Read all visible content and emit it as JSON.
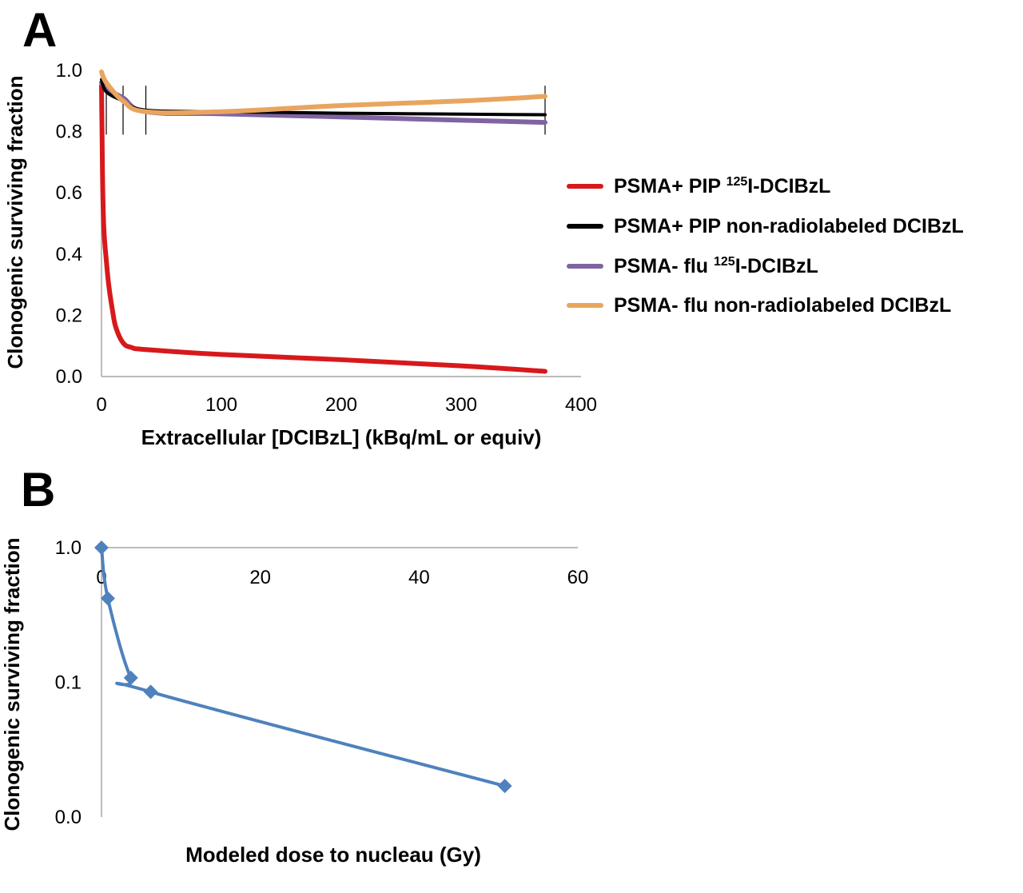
{
  "panels": {
    "a_label": "A",
    "b_label": "B"
  },
  "chart_data": [
    {
      "type": "line",
      "panel": "A",
      "xlabel": "Extracellular [DCIBzL] (kBq/mL or equiv)",
      "ylabel": "Clonogenic surviving fraction",
      "xlim": [
        0,
        400
      ],
      "ylim": [
        0,
        1.0
      ],
      "x_ticks": [
        "0",
        "100",
        "200",
        "300",
        "400"
      ],
      "y_ticks": [
        "0.0",
        "0.2",
        "0.4",
        "0.6",
        "0.8",
        "1.0"
      ],
      "legend_position": "right",
      "series": [
        {
          "name_main": "PSMA+ PIP ",
          "name_sup": "125",
          "name_tail": "I-DCIBzL",
          "color": "#d7191c",
          "x": [
            0,
            0.5,
            1,
            2,
            4,
            6,
            9,
            12,
            18,
            25,
            37,
            100,
            200,
            300,
            370
          ],
          "y": [
            0.95,
            0.78,
            0.62,
            0.48,
            0.38,
            0.3,
            0.22,
            0.16,
            0.11,
            0.095,
            0.088,
            0.072,
            0.055,
            0.035,
            0.017
          ]
        },
        {
          "name_main": "PSMA+ PIP non-radiolabeled DCIBzL",
          "name_sup": "",
          "name_tail": "",
          "color": "#000000",
          "x": [
            0,
            4,
            18,
            37,
            100,
            200,
            300,
            370
          ],
          "y": [
            0.97,
            0.93,
            0.9,
            0.87,
            0.865,
            0.86,
            0.857,
            0.855
          ]
        },
        {
          "name_main": "PSMA- flu ",
          "name_sup": "125",
          "name_tail": "I-DCIBzL",
          "color": "#8064a2",
          "x": [
            0,
            4,
            18,
            37,
            100,
            200,
            300,
            370
          ],
          "y": [
            0.96,
            0.94,
            0.91,
            0.865,
            0.858,
            0.848,
            0.837,
            0.83
          ]
        },
        {
          "name_main": "PSMA- flu non-radiolabeled DCIBzL",
          "name_sup": "",
          "name_tail": "",
          "color": "#e9a55f",
          "x": [
            0,
            4,
            18,
            37,
            100,
            200,
            300,
            370
          ],
          "y": [
            0.995,
            0.96,
            0.9,
            0.865,
            0.865,
            0.885,
            0.9,
            0.915
          ]
        }
      ],
      "error_bar_x": [
        4,
        18,
        37,
        370
      ]
    },
    {
      "type": "line",
      "panel": "B",
      "xlabel": "Modeled dose to nucleau (Gy)",
      "ylabel": "Clonogenic surviving fraction",
      "xlim": [
        0,
        60
      ],
      "y_scale": "log",
      "x_ticks": [
        "0",
        "20",
        "40",
        "60"
      ],
      "y_ticks": [
        "1.0",
        "0.1",
        "0.0"
      ],
      "color": "#4f81bd",
      "marker": "diamond",
      "x": [
        0,
        0.8,
        3.7,
        6.2,
        50.8
      ],
      "y": [
        1.0,
        0.42,
        0.108,
        0.085,
        0.017
      ]
    }
  ]
}
